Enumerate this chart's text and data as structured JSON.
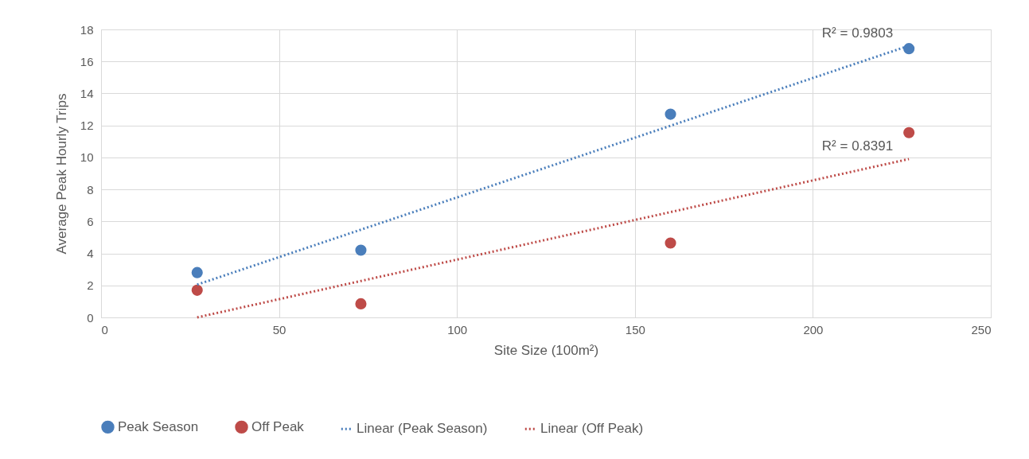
{
  "chart_data": {
    "type": "scatter",
    "xlabel": "Site Size (100m²)",
    "ylabel": "Average Peak Hourly Trips",
    "xlim": [
      0,
      250
    ],
    "xticks": [
      0,
      50,
      100,
      150,
      200,
      250
    ],
    "ylim": [
      0,
      18
    ],
    "yticks": [
      0,
      2,
      4,
      6,
      8,
      10,
      12,
      14,
      16,
      18
    ],
    "grid": true,
    "legend": "bottom",
    "series": [
      {
        "name": "Peak Season",
        "marker": "circle",
        "color": "#4a7ebb",
        "x": [
          27,
          73,
          160,
          227
        ],
        "values": [
          2.8,
          4.2,
          12.7,
          16.8
        ]
      },
      {
        "name": "Off Peak",
        "marker": "circle",
        "color": "#be4b48",
        "x": [
          27,
          73,
          160,
          227
        ],
        "values": [
          1.7,
          0.85,
          4.65,
          11.55
        ]
      },
      {
        "name": "Linear (Peak Season)",
        "type": "line",
        "line_style": "dotted",
        "color": "#4a7ebb",
        "x": [
          27,
          227
        ],
        "values": [
          2.05,
          16.98
        ]
      },
      {
        "name": "Linear (Off Peak)",
        "type": "line",
        "line_style": "dotted",
        "color": "#be4b48",
        "x": [
          27,
          227
        ],
        "values": [
          0,
          9.9
        ]
      }
    ],
    "annotations": [
      "R² = 0.9803",
      "R² = 0.8391"
    ]
  }
}
